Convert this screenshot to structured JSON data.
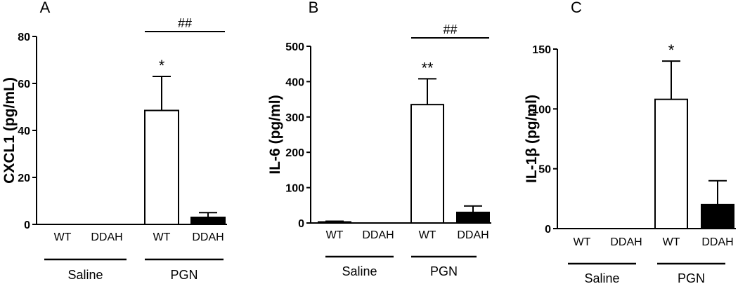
{
  "chart_data": [
    {
      "panel": "A",
      "type": "bar",
      "ylabel": "CXCL1 (pg/mL)",
      "ylim": [
        0,
        80
      ],
      "yticks": [
        0,
        20,
        40,
        60,
        80
      ],
      "categories": [
        "WT",
        "DDAH",
        "WT",
        "DDAH"
      ],
      "groups": [
        "Saline",
        "PGN"
      ],
      "values": [
        0,
        0,
        48.5,
        3
      ],
      "errors": [
        0,
        0,
        14.5,
        2
      ],
      "fills": [
        "#ffffff",
        "#000000",
        "#ffffff",
        "#000000"
      ],
      "marks": [
        {
          "index": 2,
          "text": "*"
        }
      ],
      "bracket": {
        "text": "##"
      }
    },
    {
      "panel": "B",
      "type": "bar",
      "ylabel": "IL-6 (pg/ml)",
      "ylim": [
        0,
        500
      ],
      "yticks": [
        0,
        100,
        200,
        300,
        400,
        500
      ],
      "categories": [
        "WT",
        "DDAH",
        "WT",
        "DDAH"
      ],
      "groups": [
        "Saline",
        "PGN"
      ],
      "values": [
        3,
        0,
        335,
        30
      ],
      "errors": [
        2,
        0,
        73,
        18
      ],
      "fills": [
        "#ffffff",
        "#000000",
        "#ffffff",
        "#000000"
      ],
      "marks": [
        {
          "index": 2,
          "text": "**"
        }
      ],
      "bracket": {
        "text": "##"
      }
    },
    {
      "panel": "C",
      "type": "bar",
      "ylabel": "IL-1β (pg/ml)",
      "ylim": [
        0,
        150
      ],
      "yticks": [
        0,
        50,
        100,
        150
      ],
      "categories": [
        "WT",
        "DDAH",
        "WT",
        "DDAH"
      ],
      "groups": [
        "Saline",
        "PGN"
      ],
      "values": [
        0,
        0,
        108,
        20
      ],
      "errors": [
        0,
        0,
        32,
        20
      ],
      "fills": [
        "#ffffff",
        "#000000",
        "#ffffff",
        "#000000"
      ],
      "marks": [
        {
          "index": 2,
          "text": "*"
        }
      ],
      "bracket": null
    }
  ]
}
